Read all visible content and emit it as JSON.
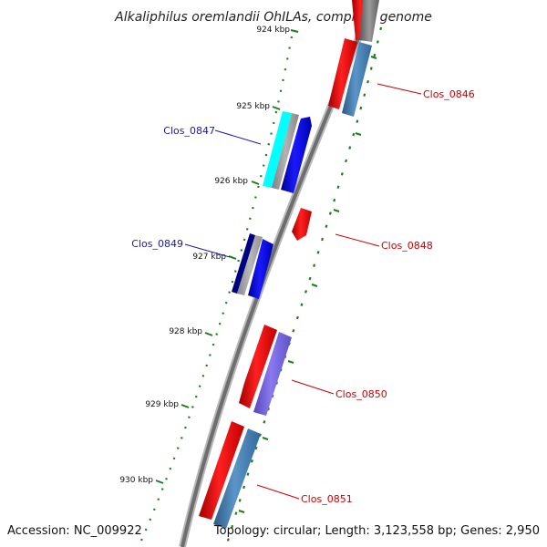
{
  "title": "Alkaliphilus oremlandii OhILAs, complete genome",
  "footer": {
    "accession": "Accession: NC_009922",
    "summary": "Topology: circular; Length: 3,123,558 bp; Genes: 2,950"
  },
  "ticks": [
    "924 kbp",
    "925 kbp",
    "926 kbp",
    "927 kbp",
    "928 kbp",
    "929 kbp",
    "930 kbp"
  ],
  "gene_labels": [
    "Clos_0846",
    "Clos_0847",
    "Clos_0848",
    "Clos_0849",
    "Clos_0850",
    "Clos_0851"
  ],
  "colors": {
    "backbone": "#777777",
    "forward_cds": "#ff0000",
    "reverse_cds": "#0000ff",
    "steel": "#4682b4",
    "cyan": "#00ffff",
    "navy": "#000080",
    "slate": "#7b68ee",
    "tick": "#1a7f1a"
  }
}
